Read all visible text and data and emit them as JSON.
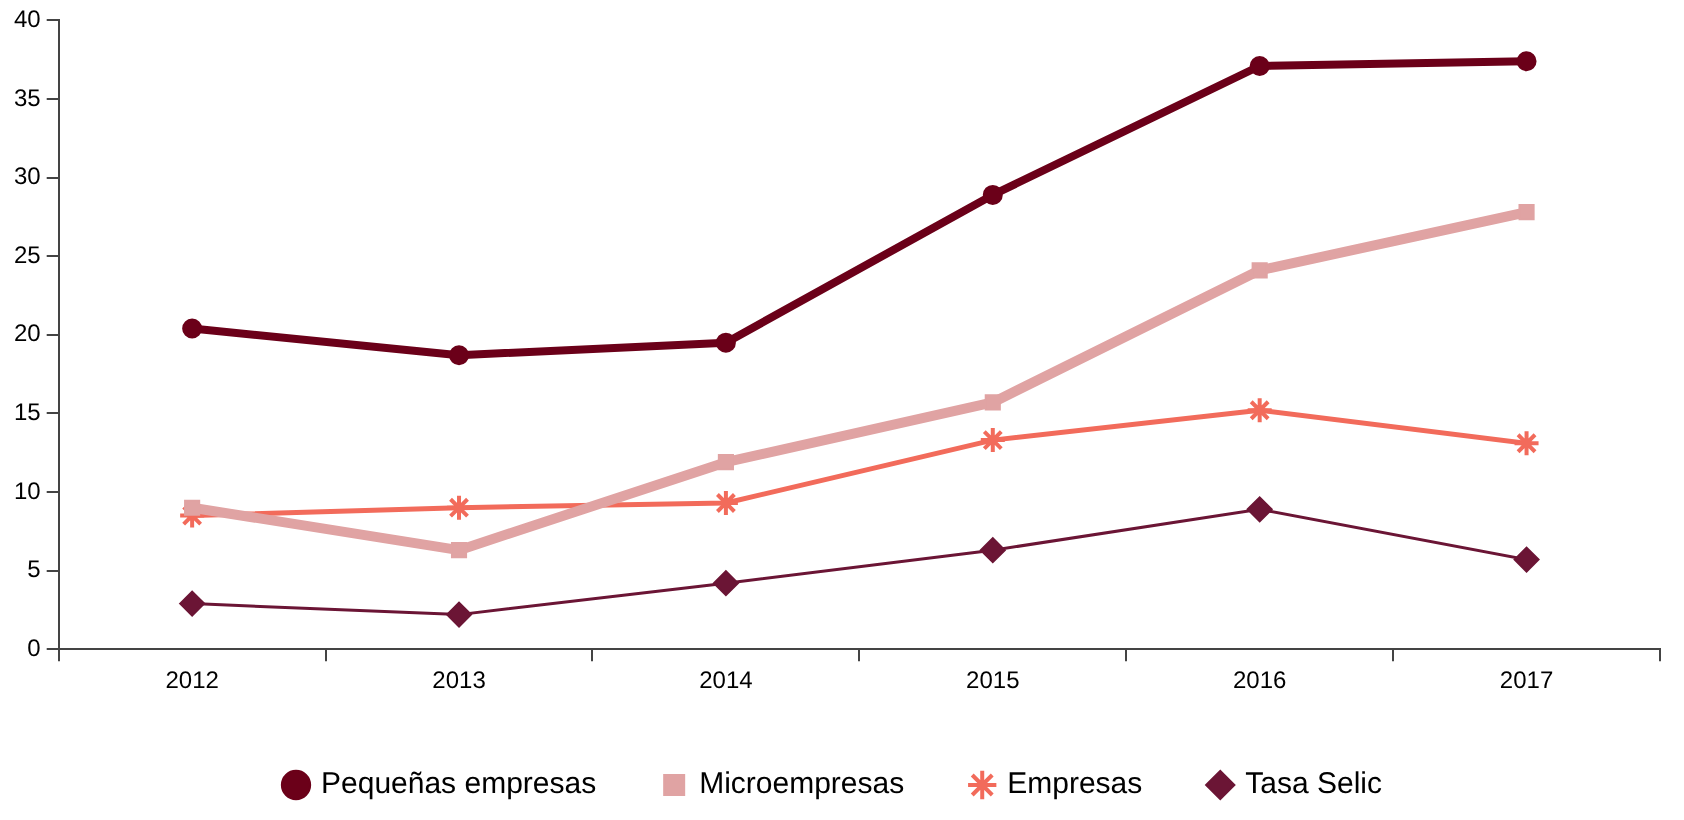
{
  "chart_data": {
    "type": "line",
    "categories": [
      "2012",
      "2013",
      "2014",
      "2015",
      "2016",
      "2017"
    ],
    "series": [
      {
        "name": "Pequeñas empresas",
        "color": "#6b0019",
        "marker": "circle",
        "values": [
          20.4,
          18.7,
          19.5,
          28.9,
          37.1,
          37.4
        ]
      },
      {
        "name": "Microempresas",
        "color": "#e0a3a3",
        "marker": "square",
        "values": [
          9.0,
          6.3,
          11.9,
          15.7,
          24.1,
          27.8
        ]
      },
      {
        "name": "Empresas",
        "color": "#f26b5b",
        "marker": "cross",
        "values": [
          8.5,
          9.0,
          9.3,
          13.3,
          15.2,
          13.1
        ]
      },
      {
        "name": "Tasa Selic",
        "color": "#6b1535",
        "marker": "diamond",
        "values": [
          2.9,
          2.2,
          4.2,
          6.3,
          8.9,
          5.7
        ]
      }
    ],
    "ylim": [
      0,
      40
    ],
    "yticks": [
      0,
      5,
      10,
      15,
      20,
      25,
      30,
      35,
      40
    ],
    "grid": false,
    "legend": "bottom"
  }
}
